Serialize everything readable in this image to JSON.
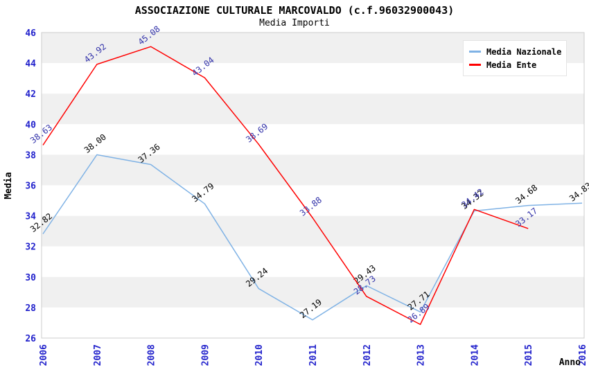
{
  "chart_data": {
    "type": "line",
    "title": "ASSOCIAZIONE CULTURALE MARCOVALDO (c.f.96032900043)",
    "subtitle": "Media Importi",
    "xlabel": "Anno",
    "ylabel": "Media",
    "x": [
      2006,
      2007,
      2008,
      2009,
      2010,
      2011,
      2012,
      2013,
      2014,
      2015,
      2016
    ],
    "ylim": [
      26,
      46
    ],
    "ytick_step": 2,
    "grid": "alternating-horizontal-bands",
    "legend_position": "top-right",
    "series": [
      {
        "name": "Media Nazionale",
        "color": "#7FB2E5",
        "label_color": "#000000",
        "values": [
          32.82,
          38.0,
          37.36,
          34.79,
          29.24,
          27.19,
          29.43,
          27.71,
          34.32,
          34.68,
          34.83
        ]
      },
      {
        "name": "Media Ente",
        "color": "#FF0000",
        "label_color": "#3333AA",
        "values": [
          38.63,
          43.92,
          45.08,
          43.04,
          38.69,
          33.88,
          28.73,
          26.89,
          34.42,
          33.17,
          null
        ]
      }
    ],
    "colors": {
      "axis_tick_label": "#2222CC",
      "axis_title": "#000000",
      "band_gray": "#F0F0F0",
      "plot_border": "#CCCCCC",
      "background": "#FFFFFF"
    }
  }
}
